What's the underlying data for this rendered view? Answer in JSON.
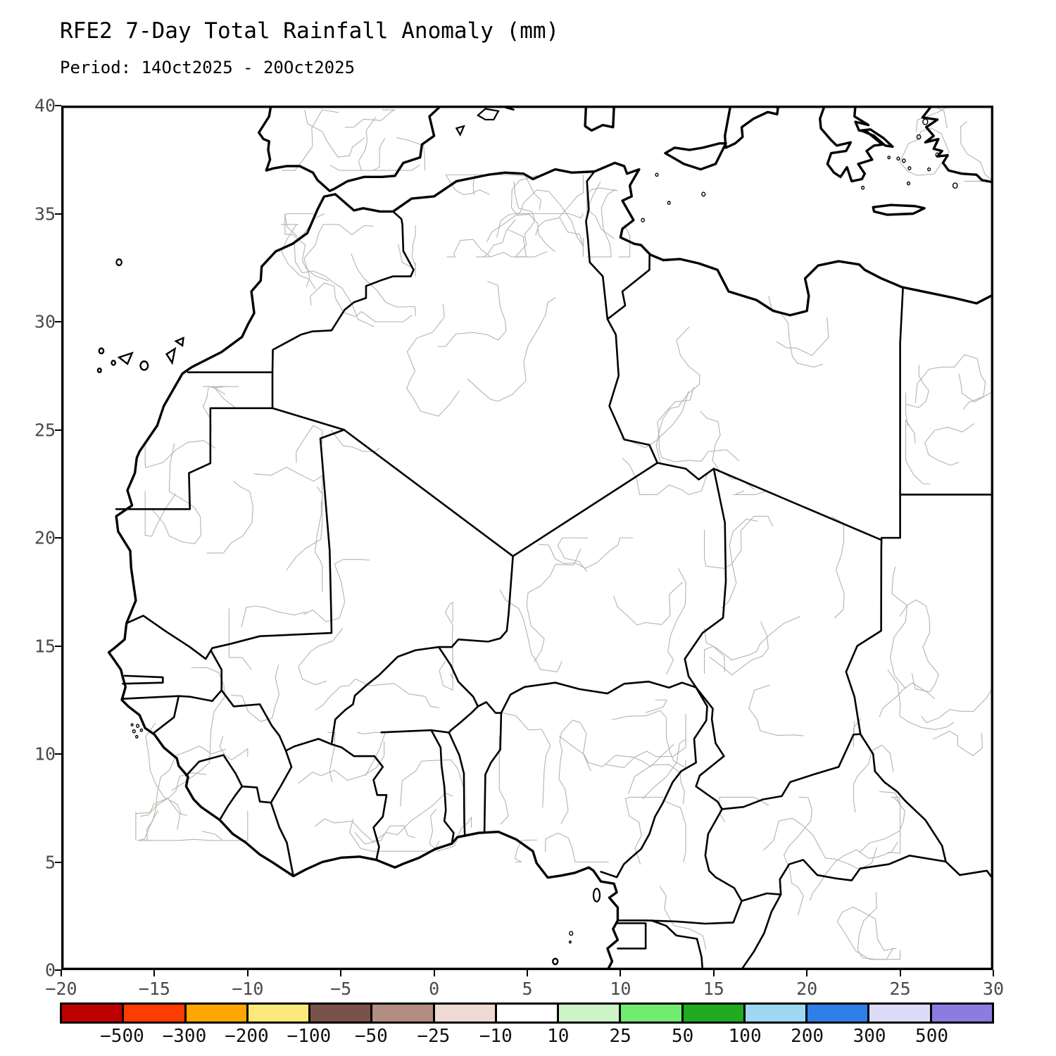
{
  "header": {
    "title": "RFE2 7-Day Total Rainfall Anomaly (mm)",
    "period": "Period: 14Oct2025 - 20Oct2025"
  },
  "axes": {
    "x_ticks": [
      "−20",
      "−15",
      "−10",
      "−5",
      "0",
      "5",
      "10",
      "15",
      "20",
      "25",
      "30"
    ],
    "y_ticks": [
      "40",
      "35",
      "30",
      "25",
      "20",
      "15",
      "10",
      "5",
      "0"
    ],
    "x_range": [
      -20,
      30
    ],
    "y_range": [
      0,
      40
    ]
  },
  "colorbar": {
    "labels": [
      "−500",
      "−300",
      "−200",
      "−100",
      "−50",
      "−25",
      "−10",
      "10",
      "25",
      "50",
      "100",
      "200",
      "300",
      "500"
    ],
    "cell_order": [
      "red",
      "orangered",
      "orange",
      "yellow",
      "brown",
      "mauve",
      "pink",
      "white",
      "lgreen",
      "mgreen",
      "green",
      "lblue",
      "blue",
      "lavender",
      "purple"
    ],
    "palette": {
      "red": "#be0000",
      "orangered": "#ff3c00",
      "orange": "#ffa600",
      "yellow": "#fce97c",
      "brown": "#7b5249",
      "mauve": "#b28d80",
      "pink": "#efdbd3",
      "white": "#ffffff",
      "lgreen": "#cdf4c6",
      "mgreen": "#70ec70",
      "green": "#21ab21",
      "lblue": "#9dd7f2",
      "blue": "#2e7fe8",
      "lavender": "#dddcf8",
      "purple": "#8c7be1"
    }
  }
}
